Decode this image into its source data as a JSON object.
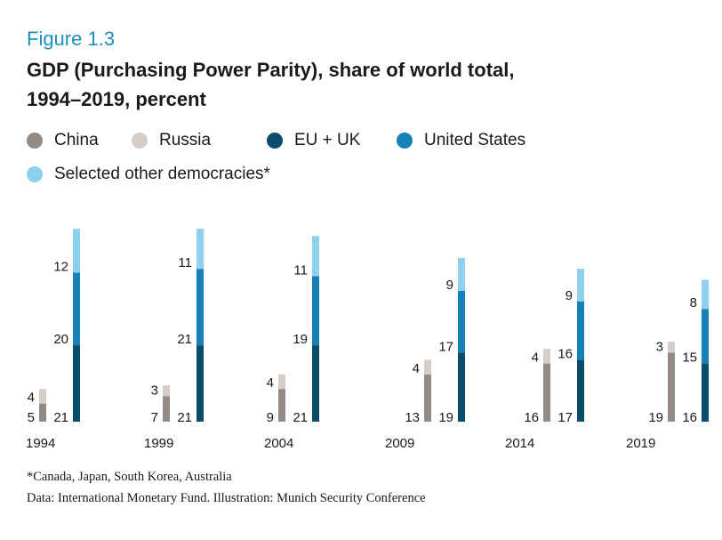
{
  "figure_label": "Figure 1.3",
  "title_line1": "GDP (Purchasing Power Parity), share of world total,",
  "title_line2": "1994–2019, percent",
  "footnote": "*Canada, Japan, South Korea, Australia",
  "source": "Data: International Monetary Fund. Illustration: Munich Security Conference",
  "colors": {
    "china": "#948a84",
    "russia": "#d7cdc8",
    "euuk": "#0a4d6a",
    "us": "#1680b8",
    "other": "#8fd0ef"
  },
  "chart_data": {
    "type": "bar",
    "stacked": true,
    "title": "GDP (Purchasing Power Parity), share of world total, 1994–2019, percent",
    "categories": [
      "1994",
      "1999",
      "2004",
      "2009",
      "2014",
      "2019"
    ],
    "legend": [
      "China",
      "Russia",
      "EU + UK",
      "United States",
      "Selected other democracies*"
    ],
    "stack_groups": [
      {
        "name": "China + Russia",
        "series": [
          "China",
          "Russia"
        ]
      },
      {
        "name": "EU + UK + United States + Selected other democracies*",
        "series": [
          "EU + UK",
          "United States",
          "Selected other democracies*"
        ]
      }
    ],
    "series": [
      {
        "name": "China",
        "key": "china",
        "group": 0,
        "values": [
          5,
          7,
          9,
          13,
          16,
          19
        ]
      },
      {
        "name": "Russia",
        "key": "russia",
        "group": 0,
        "values": [
          4,
          3,
          4,
          4,
          4,
          3
        ]
      },
      {
        "name": "EU + UK",
        "key": "euuk",
        "group": 1,
        "values": [
          21,
          21,
          21,
          19,
          17,
          16
        ]
      },
      {
        "name": "United States",
        "key": "us",
        "group": 1,
        "values": [
          20,
          21,
          19,
          17,
          16,
          15
        ]
      },
      {
        "name": "Selected other democracies*",
        "key": "other",
        "group": 1,
        "values": [
          12,
          11,
          11,
          9,
          9,
          8
        ]
      }
    ]
  }
}
